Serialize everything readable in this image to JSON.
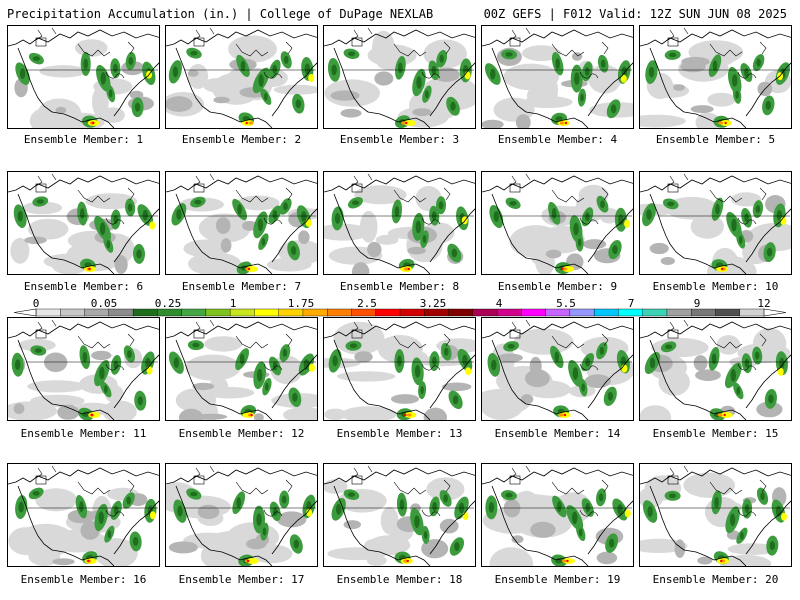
{
  "header": {
    "left_title": "Precipitation Accumulation (in.) | College of DuPage NEXLAB",
    "right_title": "00Z GEFS | F012 Valid: 12Z SUN JUN 08 2025"
  },
  "members": [
    {
      "label": "Ensemble Member: 1"
    },
    {
      "label": "Ensemble Member: 2"
    },
    {
      "label": "Ensemble Member: 3"
    },
    {
      "label": "Ensemble Member: 4"
    },
    {
      "label": "Ensemble Member: 5"
    },
    {
      "label": "Ensemble Member: 6"
    },
    {
      "label": "Ensemble Member: 7"
    },
    {
      "label": "Ensemble Member: 8"
    },
    {
      "label": "Ensemble Member: 9"
    },
    {
      "label": "Ensemble Member: 10"
    },
    {
      "label": "Ensemble Member: 11"
    },
    {
      "label": "Ensemble Member: 12"
    },
    {
      "label": "Ensemble Member: 13"
    },
    {
      "label": "Ensemble Member: 14"
    },
    {
      "label": "Ensemble Member: 15"
    },
    {
      "label": "Ensemble Member: 16"
    },
    {
      "label": "Ensemble Member: 17"
    },
    {
      "label": "Ensemble Member: 18"
    },
    {
      "label": "Ensemble Member: 19"
    },
    {
      "label": "Ensemble Member: 20"
    }
  ],
  "colorbar": {
    "tick_labels": [
      "0",
      "0.05",
      "0.25",
      "1",
      "1.75",
      "2.5",
      "3.25",
      "4",
      "5.5",
      "7",
      "9",
      "12"
    ],
    "colors": [
      "#e6e6e6",
      "#c8c8c8",
      "#a9a9a9",
      "#8c8c8c",
      "#1e6e1e",
      "#2f8c2f",
      "#43a843",
      "#7fc31f",
      "#c8e61e",
      "#ffff00",
      "#ffd200",
      "#ffaa00",
      "#ff8000",
      "#ff5000",
      "#ff0000",
      "#d20000",
      "#a00000",
      "#800000",
      "#aa0055",
      "#d2008c",
      "#ff00ff",
      "#c864ff",
      "#9696ff",
      "#00c8ff",
      "#00ffff",
      "#3cd2b4",
      "#a0a0a0",
      "#787878",
      "#505050",
      "#d2d2d2"
    ]
  },
  "map_colors": {
    "border": "#000000",
    "light_precip": "#d9d9d9",
    "trace_precip": "#b4b4b4",
    "green": "#3c9b3c",
    "dark_green": "#1e6e1e",
    "yellow": "#ffff00",
    "orange": "#ff9600",
    "red": "#ff0000"
  }
}
